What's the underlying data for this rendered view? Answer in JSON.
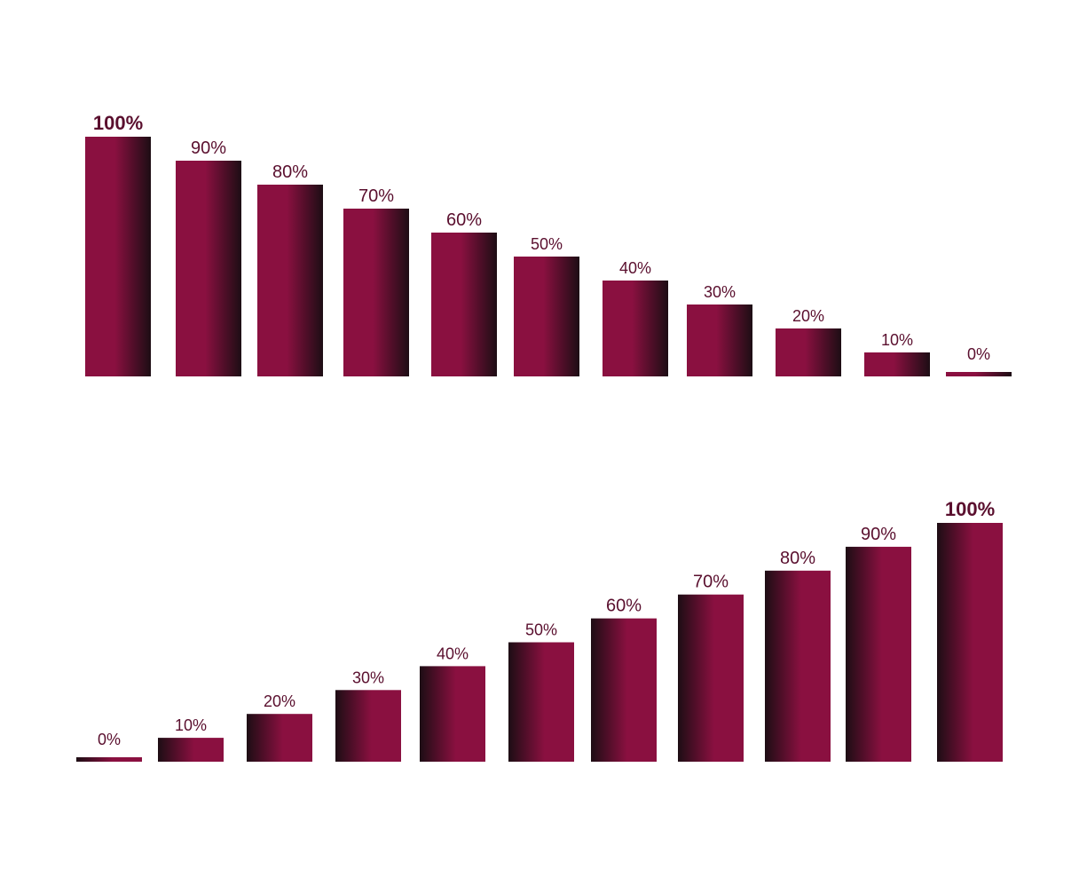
{
  "colors": {
    "bar_light": "#8a1040",
    "bar_dark": "#1d0d14",
    "label": "#5a0f2e",
    "background": "#ffffff"
  },
  "chart_data": [
    {
      "type": "bar",
      "title": "",
      "xlabel": "",
      "ylabel": "",
      "ylim": [
        0,
        100
      ],
      "grid": false,
      "gradient": "light-left-to-dark-right",
      "values": [
        100,
        90,
        80,
        70,
        60,
        50,
        40,
        30,
        20,
        10,
        0
      ],
      "labels": [
        "100%",
        "90%",
        "80%",
        "70%",
        "60%",
        "50%",
        "40%",
        "30%",
        "20%",
        "10%",
        "0%"
      ]
    },
    {
      "type": "bar",
      "title": "",
      "xlabel": "",
      "ylabel": "",
      "ylim": [
        0,
        100
      ],
      "grid": false,
      "gradient": "dark-left-to-light-right",
      "values": [
        0,
        10,
        20,
        30,
        40,
        50,
        60,
        70,
        80,
        90,
        100
      ],
      "labels": [
        "0%",
        "10%",
        "20%",
        "30%",
        "40%",
        "50%",
        "60%",
        "70%",
        "80%",
        "90%",
        "100%"
      ]
    }
  ]
}
